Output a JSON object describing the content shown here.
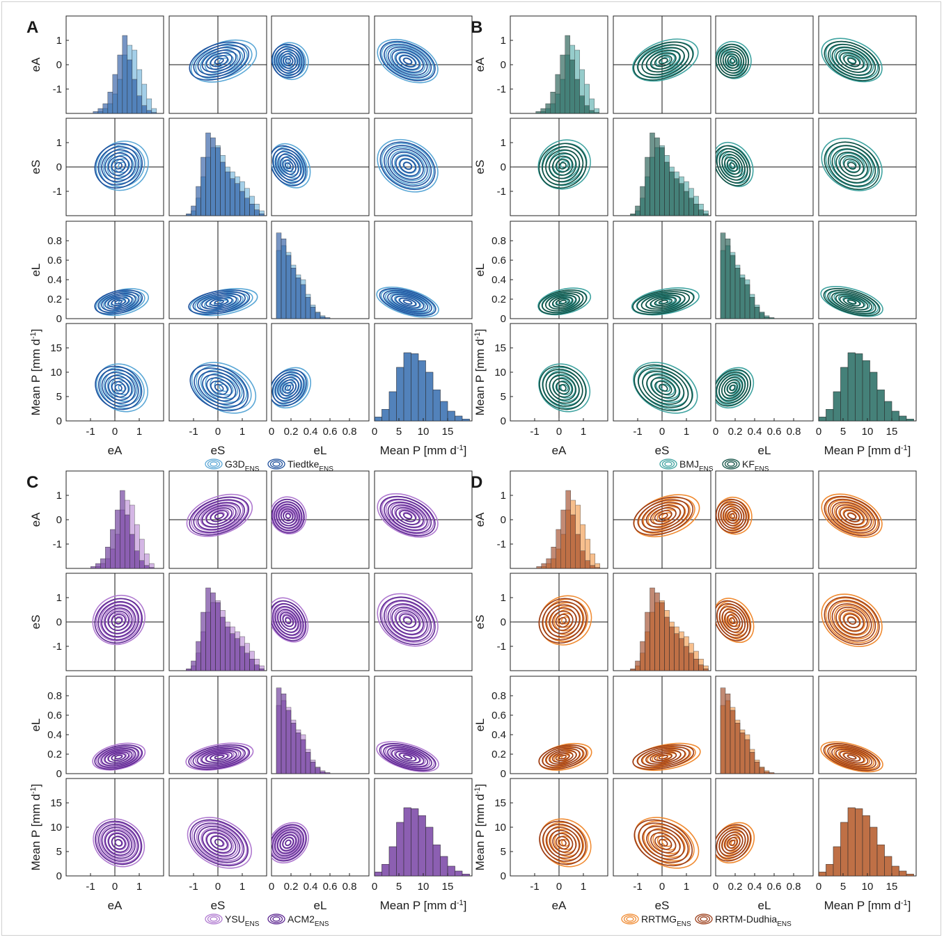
{
  "figure": {
    "type": "pair-plot matrix (contours off-diagonal, histograms on diagonal)",
    "colors": {
      "A_light": "#5aa7d6",
      "A_dark": "#1d4f9c",
      "B_light": "#3fa3a0",
      "B_dark": "#0f4f43",
      "C_light": "#b07ad0",
      "C_dark": "#5b2590",
      "D_light": "#f08a30",
      "D_dark": "#9a3c17"
    }
  },
  "chart_data": [
    {
      "type": "pairplot",
      "panel_label": "A",
      "variables": [
        "eA",
        "eS",
        "eL",
        "Mean P [mm d-1]"
      ],
      "legend": [
        {
          "name": "G3D",
          "sub": "ENS"
        },
        {
          "name": "Tiedtke",
          "sub": "ENS"
        }
      ],
      "axes": {
        "eA": {
          "lim": [
            -2,
            2
          ],
          "ticks": [
            -1,
            0,
            1
          ]
        },
        "eS": {
          "lim": [
            -2,
            2
          ],
          "ticks": [
            -1,
            0,
            1
          ]
        },
        "eL": {
          "lim": [
            0,
            1
          ],
          "ticks": [
            0,
            0.2,
            0.4,
            0.6,
            0.8
          ]
        },
        "meanP": {
          "lim": [
            0,
            20
          ],
          "ticks": [
            0,
            5,
            10,
            15
          ]
        }
      }
    },
    {
      "type": "pairplot",
      "panel_label": "B",
      "variables": [
        "eA",
        "eS",
        "eL",
        "Mean P [mm d-1]"
      ],
      "legend": [
        {
          "name": "BMJ",
          "sub": "ENS"
        },
        {
          "name": "KF",
          "sub": "ENS"
        }
      ],
      "axes": {
        "eA": {
          "lim": [
            -2,
            2
          ],
          "ticks": [
            -1,
            0,
            1
          ]
        },
        "eS": {
          "lim": [
            -2,
            2
          ],
          "ticks": [
            -1,
            0,
            1
          ]
        },
        "eL": {
          "lim": [
            0,
            1
          ],
          "ticks": [
            0,
            0.2,
            0.4,
            0.6,
            0.8
          ]
        },
        "meanP": {
          "lim": [
            0,
            20
          ],
          "ticks": [
            0,
            5,
            10,
            15
          ]
        }
      }
    },
    {
      "type": "pairplot",
      "panel_label": "C",
      "variables": [
        "eA",
        "eS",
        "eL",
        "Mean P [mm d-1]"
      ],
      "legend": [
        {
          "name": "YSU",
          "sub": "ENS"
        },
        {
          "name": "ACM2",
          "sub": "ENS"
        }
      ],
      "axes": {
        "eA": {
          "lim": [
            -2,
            2
          ],
          "ticks": [
            -1,
            0,
            1
          ]
        },
        "eS": {
          "lim": [
            -2,
            2
          ],
          "ticks": [
            -1,
            0,
            1
          ]
        },
        "eL": {
          "lim": [
            0,
            1
          ],
          "ticks": [
            0,
            0.2,
            0.4,
            0.6,
            0.8
          ]
        },
        "meanP": {
          "lim": [
            0,
            20
          ],
          "ticks": [
            0,
            5,
            10,
            15
          ]
        }
      }
    },
    {
      "type": "pairplot",
      "panel_label": "D",
      "variables": [
        "eA",
        "eS",
        "eL",
        "Mean P [mm d-1]"
      ],
      "legend": [
        {
          "name": "RRTMG",
          "sub": "ENS"
        },
        {
          "name": "RRTM-Dudhia",
          "sub": "ENS"
        }
      ],
      "axes": {
        "eA": {
          "lim": [
            -2,
            2
          ],
          "ticks": [
            -1,
            0,
            1
          ]
        },
        "eS": {
          "lim": [
            -2,
            2
          ],
          "ticks": [
            -1,
            0,
            1
          ]
        },
        "eL": {
          "lim": [
            0,
            1
          ],
          "ticks": [
            0,
            0.2,
            0.4,
            0.6,
            0.8
          ]
        },
        "meanP": {
          "lim": [
            0,
            20
          ],
          "ticks": [
            0,
            5,
            10,
            15
          ]
        }
      }
    }
  ]
}
